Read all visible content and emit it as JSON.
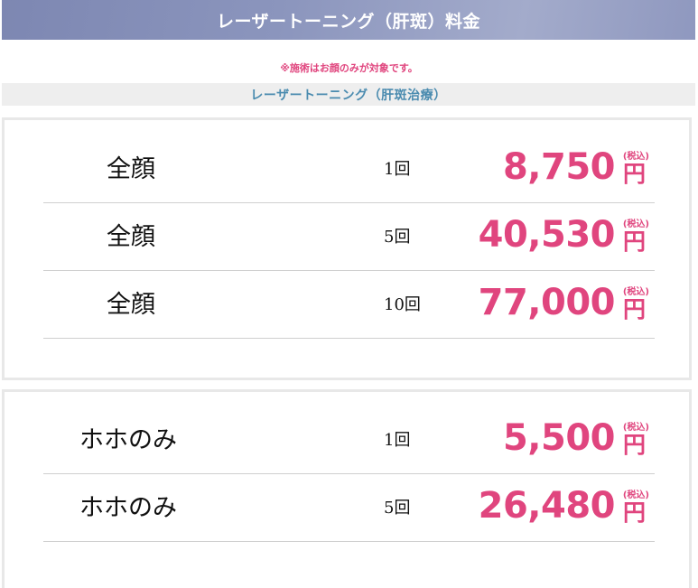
{
  "header": {
    "title": "レーザートーニング（肝斑）料金"
  },
  "note": "※施術はお顔のみが対象です。",
  "subhead": "レーザートーニング（肝斑治療）",
  "tax_label": "(税込)",
  "currency": "円",
  "colors": {
    "accent": "#e0457e",
    "subhead_text": "#4a8baf",
    "header_bg": "#8b95bd"
  },
  "cards": [
    {
      "rows": [
        {
          "name": "全顔",
          "count": "1回",
          "price": "8,750"
        },
        {
          "name": "全顔",
          "count": "5回",
          "price": "40,530"
        },
        {
          "name": "全顔",
          "count": "10回",
          "price": "77,000"
        }
      ]
    },
    {
      "rows": [
        {
          "name": "ホホのみ",
          "count": "1回",
          "price": "5,500"
        },
        {
          "name": "ホホのみ",
          "count": "5回",
          "price": "26,480"
        }
      ]
    }
  ]
}
